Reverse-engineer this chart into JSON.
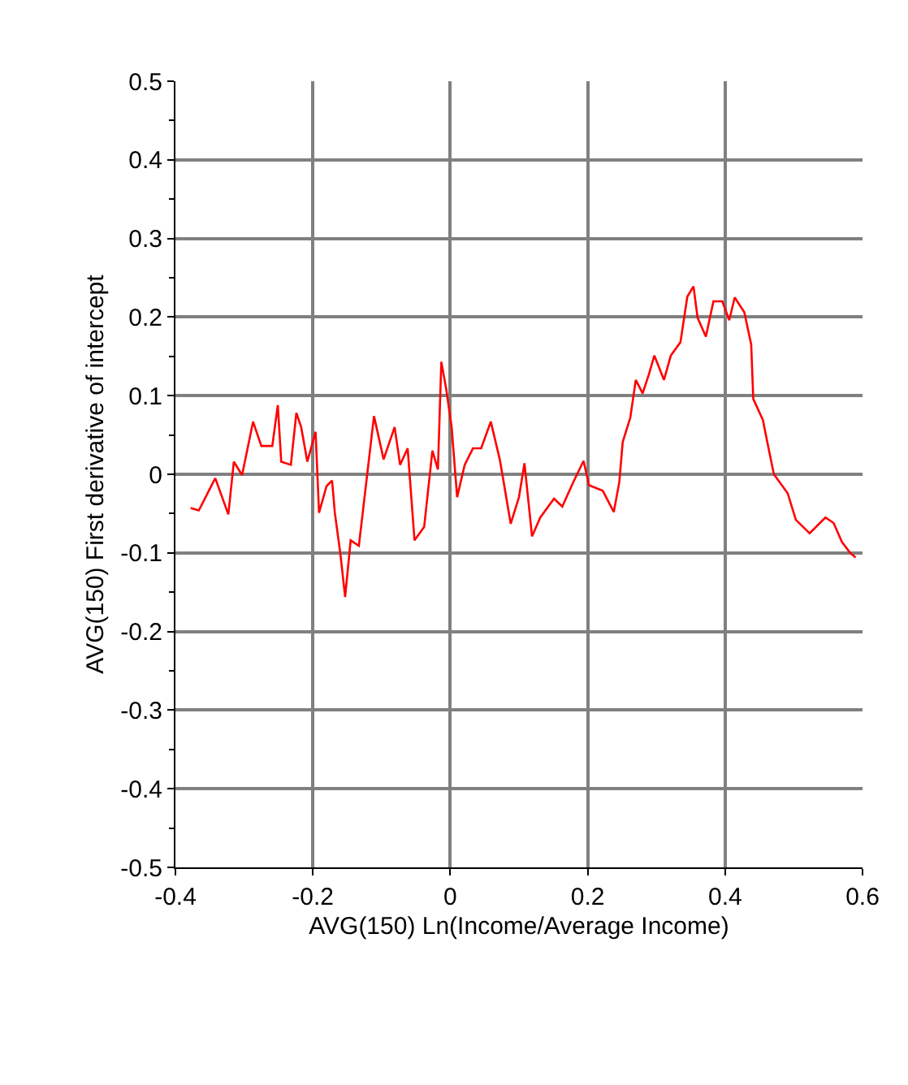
{
  "chart_data": {
    "type": "line",
    "xlabel": "AVG(150) Ln(Income/Average Income)",
    "ylabel": "AVG(150) First derivative of intercept",
    "xlim": [
      -0.4,
      0.6
    ],
    "xticks": [
      -0.4,
      -0.2,
      0,
      0.2,
      0.4,
      0.6
    ],
    "ylim": [
      -0.5,
      0.5
    ],
    "yticks": [
      -0.5,
      -0.4,
      -0.3,
      -0.2,
      -0.1,
      0,
      0.1,
      0.2,
      0.3,
      0.4,
      0.5
    ],
    "grid": true,
    "marker": "none",
    "line_style": "solid",
    "series": [
      {
        "color": "#ff0000",
        "x": [
          -0.378,
          -0.366,
          -0.342,
          -0.323,
          -0.315,
          -0.303,
          -0.287,
          -0.275,
          -0.259,
          -0.251,
          -0.246,
          -0.232,
          -0.224,
          -0.217,
          -0.208,
          -0.196,
          -0.191,
          -0.18,
          -0.172,
          -0.168,
          -0.16,
          -0.153,
          -0.145,
          -0.133,
          -0.121,
          -0.111,
          -0.097,
          -0.081,
          -0.073,
          -0.062,
          -0.052,
          -0.038,
          -0.026,
          -0.018,
          -0.013,
          -0.006,
          0.002,
          0.01,
          0.021,
          0.033,
          0.045,
          0.059,
          0.072,
          0.076,
          0.088,
          0.1,
          0.108,
          0.119,
          0.131,
          0.151,
          0.163,
          0.179,
          0.194,
          0.202,
          0.222,
          0.238,
          0.246,
          0.251,
          0.262,
          0.27,
          0.28,
          0.289,
          0.297,
          0.311,
          0.321,
          0.335,
          0.345,
          0.354,
          0.36,
          0.372,
          0.383,
          0.396,
          0.406,
          0.414,
          0.428,
          0.438,
          0.441,
          0.455,
          0.463,
          0.471,
          0.491,
          0.503,
          0.523,
          0.546,
          0.558,
          0.57,
          0.582,
          0.59
        ],
        "values": [
          -0.043,
          -0.046,
          -0.005,
          -0.051,
          0.016,
          -0.001,
          0.067,
          0.036,
          0.036,
          0.088,
          0.016,
          0.012,
          0.078,
          0.06,
          0.016,
          0.054,
          -0.049,
          -0.015,
          -0.008,
          -0.049,
          -0.101,
          -0.156,
          -0.084,
          -0.091,
          -0.001,
          0.074,
          0.019,
          0.06,
          0.012,
          0.033,
          -0.084,
          -0.067,
          0.03,
          0.006,
          0.143,
          0.109,
          0.06,
          -0.029,
          0.012,
          0.033,
          0.033,
          0.067,
          0.019,
          -0.001,
          -0.063,
          -0.029,
          0.014,
          -0.079,
          -0.055,
          -0.031,
          -0.041,
          -0.01,
          0.017,
          -0.014,
          -0.021,
          -0.048,
          -0.01,
          0.041,
          0.072,
          0.12,
          0.103,
          0.127,
          0.151,
          0.12,
          0.151,
          0.168,
          0.226,
          0.239,
          0.199,
          0.175,
          0.22,
          0.22,
          0.196,
          0.225,
          0.206,
          0.165,
          0.096,
          0.069,
          0.034,
          0.0,
          -0.024,
          -0.058,
          -0.075,
          -0.055,
          -0.062,
          -0.086,
          -0.1,
          -0.106
        ]
      }
    ]
  }
}
